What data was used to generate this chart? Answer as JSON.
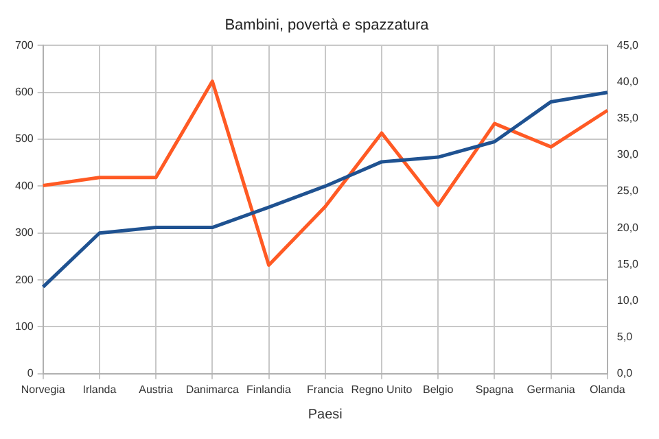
{
  "chart_data": {
    "type": "line",
    "title": "Bambini, povertà e spazzatura",
    "xlabel": "Paesi",
    "categories": [
      "Norvegia",
      "Irlanda",
      "Austria",
      "Danimarca",
      "Finlandia",
      "Francia",
      "Regno Unito",
      "Belgio",
      "Spagna",
      "Germania",
      "Olanda"
    ],
    "series": [
      {
        "color": "#1f5291",
        "values": [
          185,
          300,
          312,
          312,
          355,
          400,
          452,
          462,
          495,
          580,
          600
        ]
      },
      {
        "color": "#ff5a24",
        "axis": "y2",
        "values": [
          25.8,
          26.9,
          26.9,
          40.1,
          14.9,
          22.9,
          33.0,
          23.1,
          34.3,
          31.1,
          36.1
        ]
      }
    ],
    "ylim": [
      0,
      700
    ],
    "yticks": [
      0,
      100,
      200,
      300,
      400,
      500,
      600,
      700
    ],
    "y2lim": [
      0,
      45
    ],
    "y2ticks": [
      {
        "value": 0,
        "label": "0,0"
      },
      {
        "value": 5,
        "label": "5,0"
      },
      {
        "value": 10,
        "label": "10,0"
      },
      {
        "value": 15,
        "label": "15,0"
      },
      {
        "value": 20,
        "label": "20,0"
      },
      {
        "value": 25,
        "label": "25,0"
      },
      {
        "value": 30,
        "label": "30,0"
      },
      {
        "value": 35,
        "label": "35,0"
      },
      {
        "value": 40,
        "label": "40,0"
      },
      {
        "value": 45,
        "label": "45,0"
      }
    ],
    "grid": true,
    "legend": false,
    "marker": "none",
    "line_style": "solid"
  }
}
